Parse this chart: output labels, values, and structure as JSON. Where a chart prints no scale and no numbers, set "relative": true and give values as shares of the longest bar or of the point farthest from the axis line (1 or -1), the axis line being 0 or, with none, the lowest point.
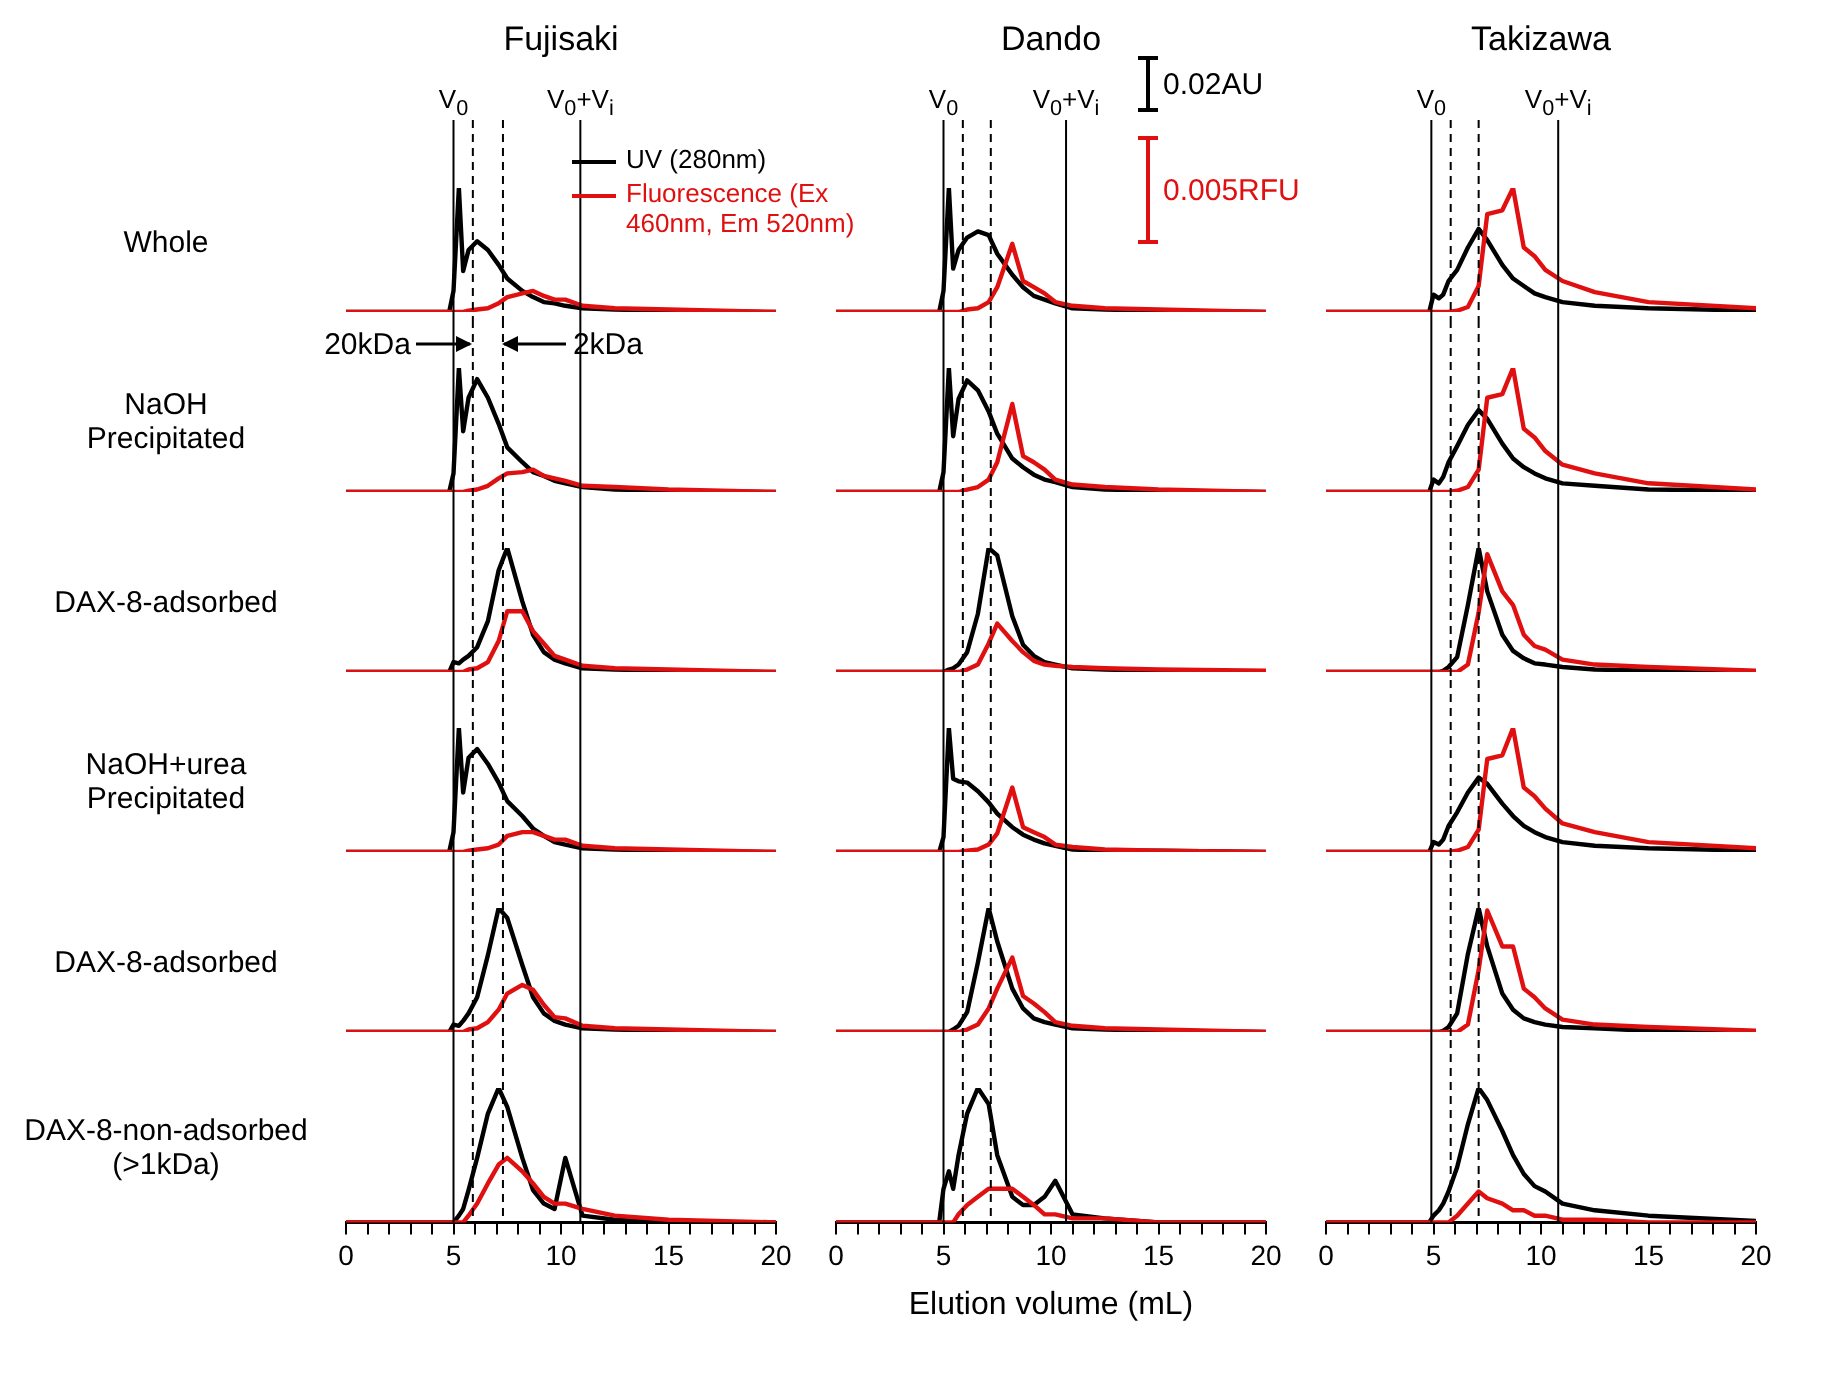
{
  "chart_data": [
    {
      "type": "line",
      "relative": true,
      "title": "Fujisaki",
      "ylabel": "Whole",
      "legend": "top right",
      "tick_labels": false,
      "xlim": [
        0,
        20
      ],
      "x": [
        0,
        4.8,
        5.0,
        5.25,
        5.45,
        5.7,
        6.1,
        6.6,
        7.1,
        7.5,
        8.2,
        8.7,
        9.2,
        9.7,
        10.2,
        11,
        12.5,
        15,
        20
      ],
      "ref_lines": [
        {
          "axis": "x",
          "value": 5.0,
          "label": "V$_{0}$"
        },
        {
          "axis": "x",
          "value": 5.9,
          "line_style": "dashed"
        },
        {
          "axis": "x",
          "value": 7.3,
          "line_style": "dashed"
        },
        {
          "axis": "x",
          "value": 10.9,
          "label": "V$_{0}$+V$_{i}$"
        }
      ],
      "series": [
        {
          "name": "UV (280nm)",
          "color": "#000000",
          "values": [
            0,
            0,
            0.17,
            1,
            0.33,
            0.5,
            0.57,
            0.5,
            0.38,
            0.27,
            0.17,
            0.12,
            0.08,
            0.07,
            0.05,
            0.03,
            0.02,
            0.01,
            0
          ]
        },
        {
          "name": "Fluorescence (Ex 460nm, Em 520nm)",
          "color": "#e01010",
          "values": [
            0,
            0,
            0,
            0,
            0,
            0.01,
            0.02,
            0.03,
            0.07,
            0.12,
            0.15,
            0.17,
            0.13,
            0.1,
            0.1,
            0.05,
            0.03,
            0.02,
            0
          ]
        }
      ]
    },
    {
      "type": "line",
      "relative": true,
      "title": "Dando",
      "annotations": [
        "0.02AU",
        "0.005RFU"
      ],
      "tick_labels": false,
      "xlim": [
        0,
        20
      ],
      "x": [
        0,
        4.8,
        5.0,
        5.25,
        5.45,
        5.7,
        6.1,
        6.6,
        7.1,
        7.5,
        8.2,
        8.7,
        9.2,
        9.7,
        10.2,
        11,
        12.5,
        15,
        20
      ],
      "ref_lines": [
        {
          "axis": "x",
          "value": 5.0,
          "label": "V$_{0}$"
        },
        {
          "axis": "x",
          "value": 5.9,
          "line_style": "dashed"
        },
        {
          "axis": "x",
          "value": 7.2,
          "line_style": "dashed"
        },
        {
          "axis": "x",
          "value": 10.7,
          "label": "V$_{0}$+V$_{i}$"
        }
      ],
      "series": [
        {
          "color": "#000000",
          "values": [
            0,
            0,
            0.17,
            1,
            0.35,
            0.5,
            0.6,
            0.65,
            0.62,
            0.47,
            0.3,
            0.2,
            0.13,
            0.1,
            0.07,
            0.03,
            0.02,
            0.01,
            0
          ]
        },
        {
          "color": "#e01010",
          "values": [
            0,
            0,
            0,
            0,
            0,
            0,
            0.02,
            0.03,
            0.08,
            0.2,
            0.55,
            0.25,
            0.2,
            0.15,
            0.08,
            0.05,
            0.03,
            0.02,
            0
          ]
        }
      ]
    },
    {
      "type": "line",
      "relative": true,
      "title": "Takizawa",
      "tick_labels": false,
      "xlim": [
        0,
        20
      ],
      "x": [
        0,
        4.8,
        5.0,
        5.25,
        5.45,
        5.7,
        6.1,
        6.6,
        7.1,
        7.5,
        8.2,
        8.7,
        9.2,
        9.7,
        10.2,
        11,
        12.5,
        15,
        20
      ],
      "ref_lines": [
        {
          "axis": "x",
          "value": 4.9,
          "label": "V$_{0}$"
        },
        {
          "axis": "x",
          "value": 5.8,
          "line_style": "dashed"
        },
        {
          "axis": "x",
          "value": 7.1,
          "line_style": "dashed"
        },
        {
          "axis": "x",
          "value": 10.8,
          "label": "V$_{0}$+V$_{i}$"
        }
      ],
      "series": [
        {
          "color": "#000000",
          "values": [
            0,
            0,
            0.14,
            0.11,
            0.14,
            0.25,
            0.34,
            0.52,
            0.67,
            0.58,
            0.38,
            0.27,
            0.21,
            0.15,
            0.12,
            0.08,
            0.05,
            0.03,
            0.01
          ]
        },
        {
          "color": "#e01010",
          "values": [
            0,
            0,
            0,
            0,
            0,
            0,
            0.01,
            0.04,
            0.21,
            0.79,
            0.82,
            1,
            0.52,
            0.45,
            0.34,
            0.25,
            0.16,
            0.08,
            0.03
          ]
        }
      ]
    },
    {
      "type": "line",
      "relative": true,
      "ylabel": "NaOH\nPrecipitated",
      "annotations": [
        {
          "text": "20kDa",
          "x": 5.9
        },
        {
          "text": "2kDa",
          "x": 7.3
        }
      ],
      "tick_labels": false,
      "xlim": [
        0,
        20
      ],
      "x": [
        0,
        4.8,
        5.0,
        5.25,
        5.45,
        5.7,
        6.1,
        6.6,
        7.1,
        7.5,
        8.2,
        8.7,
        9.2,
        9.7,
        10.2,
        11,
        12.5,
        15,
        20
      ],
      "ref_lines": [
        {
          "axis": "x",
          "value": 5.0
        },
        {
          "axis": "x",
          "value": 5.9,
          "line_style": "dashed"
        },
        {
          "axis": "x",
          "value": 7.3,
          "line_style": "dashed"
        },
        {
          "axis": "x",
          "value": 10.9
        }
      ],
      "series": [
        {
          "color": "#000000",
          "values": [
            0,
            0,
            0.15,
            1,
            0.49,
            0.76,
            0.91,
            0.76,
            0.55,
            0.36,
            0.24,
            0.16,
            0.13,
            0.09,
            0.07,
            0.04,
            0.02,
            0.01,
            0
          ]
        },
        {
          "color": "#e01010",
          "values": [
            0,
            0,
            0,
            0,
            0,
            0.01,
            0.02,
            0.05,
            0.11,
            0.15,
            0.16,
            0.18,
            0.13,
            0.11,
            0.09,
            0.05,
            0.04,
            0.02,
            0
          ]
        }
      ]
    },
    {
      "type": "line",
      "relative": true,
      "tick_labels": false,
      "xlim": [
        0,
        20
      ],
      "x": [
        0,
        4.8,
        5.0,
        5.25,
        5.45,
        5.7,
        6.1,
        6.6,
        7.1,
        7.5,
        8.2,
        8.7,
        9.2,
        9.7,
        10.2,
        11,
        12.5,
        15,
        20
      ],
      "ref_lines": [
        {
          "axis": "x",
          "value": 5.0
        },
        {
          "axis": "x",
          "value": 5.9,
          "line_style": "dashed"
        },
        {
          "axis": "x",
          "value": 7.2,
          "line_style": "dashed"
        },
        {
          "axis": "x",
          "value": 10.7
        }
      ],
      "series": [
        {
          "color": "#000000",
          "values": [
            0,
            0,
            0.16,
            1,
            0.45,
            0.75,
            0.9,
            0.82,
            0.65,
            0.47,
            0.27,
            0.2,
            0.14,
            0.1,
            0.08,
            0.04,
            0.02,
            0.01,
            0
          ]
        },
        {
          "color": "#e01010",
          "values": [
            0,
            0,
            0,
            0,
            0,
            0,
            0.02,
            0.04,
            0.1,
            0.24,
            0.71,
            0.29,
            0.24,
            0.18,
            0.1,
            0.06,
            0.04,
            0.02,
            0
          ]
        }
      ]
    },
    {
      "type": "line",
      "relative": true,
      "tick_labels": false,
      "xlim": [
        0,
        20
      ],
      "x": [
        0,
        4.8,
        5.0,
        5.25,
        5.45,
        5.7,
        6.1,
        6.6,
        7.1,
        7.5,
        8.2,
        8.7,
        9.2,
        9.7,
        10.2,
        11,
        12.5,
        15,
        20
      ],
      "ref_lines": [
        {
          "axis": "x",
          "value": 4.9
        },
        {
          "axis": "x",
          "value": 5.8,
          "line_style": "dashed"
        },
        {
          "axis": "x",
          "value": 7.1,
          "line_style": "dashed"
        },
        {
          "axis": "x",
          "value": 10.8
        }
      ],
      "series": [
        {
          "color": "#000000",
          "values": [
            0,
            0,
            0.1,
            0.07,
            0.12,
            0.24,
            0.37,
            0.54,
            0.66,
            0.59,
            0.39,
            0.27,
            0.2,
            0.15,
            0.11,
            0.07,
            0.05,
            0.02,
            0.01
          ]
        },
        {
          "color": "#e01010",
          "values": [
            0,
            0,
            0,
            0,
            0,
            0,
            0.01,
            0.04,
            0.18,
            0.76,
            0.79,
            1,
            0.51,
            0.44,
            0.33,
            0.22,
            0.15,
            0.07,
            0.02
          ]
        }
      ]
    },
    {
      "type": "line",
      "relative": true,
      "ylabel": "DAX-8-adsorbed",
      "tick_labels": false,
      "xlim": [
        0,
        20
      ],
      "x": [
        0,
        4.8,
        5.0,
        5.25,
        5.45,
        5.7,
        6.1,
        6.6,
        7.1,
        7.5,
        8.2,
        8.7,
        9.2,
        9.7,
        10.2,
        11,
        12.5,
        15,
        20
      ],
      "ref_lines": [
        {
          "axis": "x",
          "value": 5.0
        },
        {
          "axis": "x",
          "value": 5.9,
          "line_style": "dashed"
        },
        {
          "axis": "x",
          "value": 7.3,
          "line_style": "dashed"
        },
        {
          "axis": "x",
          "value": 10.9
        }
      ],
      "series": [
        {
          "color": "#000000",
          "values": [
            0,
            0,
            0.08,
            0.07,
            0.1,
            0.13,
            0.2,
            0.41,
            0.82,
            1,
            0.57,
            0.3,
            0.16,
            0.1,
            0.07,
            0.03,
            0.02,
            0.01,
            0
          ]
        },
        {
          "color": "#e01010",
          "values": [
            0,
            0,
            0,
            0,
            0,
            0.02,
            0.03,
            0.08,
            0.25,
            0.49,
            0.49,
            0.33,
            0.23,
            0.13,
            0.1,
            0.05,
            0.03,
            0.02,
            0
          ]
        }
      ]
    },
    {
      "type": "line",
      "relative": true,
      "tick_labels": false,
      "xlim": [
        0,
        20
      ],
      "x": [
        0,
        4.8,
        5.0,
        5.25,
        5.45,
        5.7,
        6.1,
        6.6,
        7.1,
        7.5,
        8.2,
        8.7,
        9.2,
        9.7,
        10.2,
        11,
        12.5,
        15,
        20
      ],
      "ref_lines": [
        {
          "axis": "x",
          "value": 5.0
        },
        {
          "axis": "x",
          "value": 5.9,
          "line_style": "dashed"
        },
        {
          "axis": "x",
          "value": 7.2,
          "line_style": "dashed"
        },
        {
          "axis": "x",
          "value": 10.7
        }
      ],
      "series": [
        {
          "color": "#000000",
          "values": [
            0,
            0,
            0,
            0.02,
            0.03,
            0.06,
            0.16,
            0.47,
            1,
            0.94,
            0.45,
            0.22,
            0.13,
            0.08,
            0.06,
            0.03,
            0.02,
            0.01,
            0
          ]
        },
        {
          "color": "#e01010",
          "values": [
            0,
            0,
            0,
            0,
            0,
            0,
            0.02,
            0.06,
            0.23,
            0.39,
            0.25,
            0.16,
            0.09,
            0.06,
            0.05,
            0.04,
            0.03,
            0.02,
            0.01
          ]
        }
      ]
    },
    {
      "type": "line",
      "relative": true,
      "tick_labels": false,
      "xlim": [
        0,
        20
      ],
      "x": [
        0,
        4.8,
        5.0,
        5.25,
        5.45,
        5.7,
        6.1,
        6.6,
        7.1,
        7.5,
        8.2,
        8.7,
        9.2,
        9.7,
        10.2,
        11,
        12.5,
        15,
        20
      ],
      "ref_lines": [
        {
          "axis": "x",
          "value": 4.9
        },
        {
          "axis": "x",
          "value": 5.8,
          "line_style": "dashed"
        },
        {
          "axis": "x",
          "value": 7.1,
          "line_style": "dashed"
        },
        {
          "axis": "x",
          "value": 10.8
        }
      ],
      "series": [
        {
          "color": "#000000",
          "values": [
            0,
            0,
            0,
            0,
            0.01,
            0.04,
            0.12,
            0.54,
            1,
            0.65,
            0.3,
            0.17,
            0.11,
            0.07,
            0.06,
            0.04,
            0.02,
            0.01,
            0
          ]
        },
        {
          "color": "#e01010",
          "values": [
            0,
            0,
            0,
            0,
            0,
            0,
            0,
            0.06,
            0.48,
            0.95,
            0.65,
            0.54,
            0.3,
            0.21,
            0.18,
            0.1,
            0.06,
            0.04,
            0.01
          ]
        }
      ]
    },
    {
      "type": "line",
      "relative": true,
      "ylabel": "NaOH+urea\nPrecipitated",
      "tick_labels": false,
      "xlim": [
        0,
        20
      ],
      "x": [
        0,
        4.8,
        5.0,
        5.25,
        5.45,
        5.7,
        6.1,
        6.6,
        7.1,
        7.5,
        8.2,
        8.7,
        9.2,
        9.7,
        10.2,
        11,
        12.5,
        15,
        20
      ],
      "ref_lines": [
        {
          "axis": "x",
          "value": 5.0
        },
        {
          "axis": "x",
          "value": 5.9,
          "line_style": "dashed"
        },
        {
          "axis": "x",
          "value": 7.3,
          "line_style": "dashed"
        },
        {
          "axis": "x",
          "value": 10.9
        }
      ],
      "series": [
        {
          "color": "#000000",
          "values": [
            0,
            0,
            0.16,
            1,
            0.48,
            0.76,
            0.83,
            0.71,
            0.56,
            0.41,
            0.29,
            0.19,
            0.13,
            0.08,
            0.06,
            0.03,
            0.02,
            0.01,
            0
          ]
        },
        {
          "color": "#e01010",
          "values": [
            0,
            0,
            0,
            0,
            0,
            0.01,
            0.02,
            0.03,
            0.06,
            0.13,
            0.16,
            0.16,
            0.13,
            0.1,
            0.1,
            0.05,
            0.03,
            0.02,
            0
          ]
        }
      ]
    },
    {
      "type": "line",
      "relative": true,
      "tick_labels": false,
      "xlim": [
        0,
        20
      ],
      "x": [
        0,
        4.8,
        5.0,
        5.25,
        5.45,
        5.7,
        6.1,
        6.6,
        7.1,
        7.5,
        8.2,
        8.7,
        9.2,
        9.7,
        10.2,
        11,
        12.5,
        15,
        20
      ],
      "ref_lines": [
        {
          "axis": "x",
          "value": 5.0
        },
        {
          "axis": "x",
          "value": 5.9,
          "line_style": "dashed"
        },
        {
          "axis": "x",
          "value": 7.2,
          "line_style": "dashed"
        },
        {
          "axis": "x",
          "value": 10.7
        }
      ],
      "series": [
        {
          "color": "#000000",
          "values": [
            0,
            0,
            0.12,
            1,
            0.59,
            0.57,
            0.56,
            0.49,
            0.4,
            0.31,
            0.2,
            0.14,
            0.1,
            0.07,
            0.05,
            0.02,
            0.01,
            0.01,
            0
          ]
        },
        {
          "color": "#e01010",
          "values": [
            0,
            0,
            0,
            0,
            0,
            0,
            0.01,
            0.02,
            0.06,
            0.15,
            0.52,
            0.2,
            0.16,
            0.12,
            0.06,
            0.04,
            0.02,
            0.01,
            0
          ]
        }
      ]
    },
    {
      "type": "line",
      "relative": true,
      "tick_labels": false,
      "xlim": [
        0,
        20
      ],
      "x": [
        0,
        4.8,
        5.0,
        5.25,
        5.45,
        5.7,
        6.1,
        6.6,
        7.1,
        7.5,
        8.2,
        8.7,
        9.2,
        9.7,
        10.2,
        11,
        12.5,
        15,
        20
      ],
      "ref_lines": [
        {
          "axis": "x",
          "value": 4.9
        },
        {
          "axis": "x",
          "value": 5.8,
          "line_style": "dashed"
        },
        {
          "axis": "x",
          "value": 7.1,
          "line_style": "dashed"
        },
        {
          "axis": "x",
          "value": 10.8
        }
      ],
      "series": [
        {
          "color": "#000000",
          "values": [
            0,
            0,
            0.08,
            0.06,
            0.1,
            0.21,
            0.32,
            0.48,
            0.6,
            0.55,
            0.39,
            0.29,
            0.21,
            0.16,
            0.12,
            0.08,
            0.05,
            0.03,
            0.01
          ]
        },
        {
          "color": "#e01010",
          "values": [
            0,
            0,
            0,
            0,
            0,
            0,
            0.01,
            0.04,
            0.18,
            0.75,
            0.78,
            1,
            0.52,
            0.45,
            0.35,
            0.23,
            0.16,
            0.08,
            0.03
          ]
        }
      ]
    },
    {
      "type": "line",
      "relative": true,
      "ylabel": "DAX-8-adsorbed",
      "tick_labels": false,
      "xlim": [
        0,
        20
      ],
      "x": [
        0,
        4.8,
        5.0,
        5.25,
        5.45,
        5.7,
        6.1,
        6.6,
        7.1,
        7.5,
        8.2,
        8.7,
        9.2,
        9.7,
        10.2,
        11,
        12.5,
        15,
        20
      ],
      "ref_lines": [
        {
          "axis": "x",
          "value": 5.0
        },
        {
          "axis": "x",
          "value": 5.9,
          "line_style": "dashed"
        },
        {
          "axis": "x",
          "value": 7.3,
          "line_style": "dashed"
        },
        {
          "axis": "x",
          "value": 10.9
        }
      ],
      "series": [
        {
          "color": "#000000",
          "values": [
            0,
            0,
            0.06,
            0.05,
            0.09,
            0.15,
            0.28,
            0.62,
            1,
            0.92,
            0.54,
            0.28,
            0.15,
            0.09,
            0.06,
            0.03,
            0.02,
            0.01,
            0
          ]
        },
        {
          "color": "#e01010",
          "values": [
            0,
            0,
            0,
            0,
            0,
            0.02,
            0.03,
            0.08,
            0.18,
            0.31,
            0.38,
            0.34,
            0.22,
            0.12,
            0.11,
            0.05,
            0.03,
            0.02,
            0
          ]
        }
      ]
    },
    {
      "type": "line",
      "relative": true,
      "tick_labels": false,
      "xlim": [
        0,
        20
      ],
      "x": [
        0,
        4.8,
        5.0,
        5.25,
        5.45,
        5.7,
        6.1,
        6.6,
        7.1,
        7.5,
        8.2,
        8.7,
        9.2,
        9.7,
        10.2,
        11,
        12.5,
        15,
        20
      ],
      "ref_lines": [
        {
          "axis": "x",
          "value": 5.0
        },
        {
          "axis": "x",
          "value": 5.9,
          "line_style": "dashed"
        },
        {
          "axis": "x",
          "value": 7.2,
          "line_style": "dashed"
        },
        {
          "axis": "x",
          "value": 10.7
        }
      ],
      "series": [
        {
          "color": "#000000",
          "values": [
            0,
            0,
            0,
            0,
            0.02,
            0.05,
            0.16,
            0.56,
            1,
            0.73,
            0.35,
            0.19,
            0.11,
            0.08,
            0.06,
            0.03,
            0.02,
            0.01,
            0
          ]
        },
        {
          "color": "#e01010",
          "values": [
            0,
            0,
            0,
            0,
            0,
            0,
            0.02,
            0.06,
            0.19,
            0.35,
            0.6,
            0.29,
            0.23,
            0.16,
            0.08,
            0.05,
            0.03,
            0.02,
            0
          ]
        }
      ]
    },
    {
      "type": "line",
      "relative": true,
      "tick_labels": false,
      "xlim": [
        0,
        20
      ],
      "x": [
        0,
        4.8,
        5.0,
        5.25,
        5.45,
        5.7,
        6.1,
        6.6,
        7.1,
        7.5,
        8.2,
        8.7,
        9.2,
        9.7,
        10.2,
        11,
        12.5,
        15,
        20
      ],
      "ref_lines": [
        {
          "axis": "x",
          "value": 4.9
        },
        {
          "axis": "x",
          "value": 5.8,
          "line_style": "dashed"
        },
        {
          "axis": "x",
          "value": 7.1,
          "line_style": "dashed"
        },
        {
          "axis": "x",
          "value": 10.8
        }
      ],
      "series": [
        {
          "color": "#000000",
          "values": [
            0,
            0,
            0,
            0,
            0.01,
            0.04,
            0.15,
            0.63,
            1,
            0.69,
            0.31,
            0.18,
            0.11,
            0.08,
            0.06,
            0.04,
            0.03,
            0.01,
            0
          ]
        },
        {
          "color": "#e01010",
          "values": [
            0,
            0,
            0,
            0,
            0,
            0,
            0,
            0.06,
            0.5,
            0.98,
            0.69,
            0.69,
            0.35,
            0.28,
            0.19,
            0.1,
            0.06,
            0.04,
            0.01
          ]
        }
      ]
    },
    {
      "type": "line",
      "relative": true,
      "ylabel": "DAX-8-non-adsorbed\n(>1kDa)",
      "tick_labels": "x",
      "xlim": [
        0,
        20
      ],
      "xticks": [
        0,
        {
          "value": 1,
          "label": null
        },
        {
          "value": 2,
          "label": null
        },
        {
          "value": 3,
          "label": null
        },
        {
          "value": 4,
          "label": null
        },
        5,
        {
          "value": 6,
          "label": null
        },
        {
          "value": 7,
          "label": null
        },
        {
          "value": 8,
          "label": null
        },
        {
          "value": 9,
          "label": null
        },
        10,
        {
          "value": 11,
          "label": null
        },
        {
          "value": 12,
          "label": null
        },
        {
          "value": 13,
          "label": null
        },
        {
          "value": 14,
          "label": null
        },
        15,
        {
          "value": 16,
          "label": null
        },
        {
          "value": 17,
          "label": null
        },
        {
          "value": 18,
          "label": null
        },
        {
          "value": 19,
          "label": null
        },
        20
      ],
      "x": [
        0,
        4.8,
        5.0,
        5.25,
        5.45,
        5.7,
        6.1,
        6.6,
        7.1,
        7.5,
        8.2,
        8.7,
        9.2,
        9.7,
        10.2,
        11,
        12.5,
        15,
        20
      ],
      "ref_lines": [
        {
          "axis": "x",
          "value": 5.0
        },
        {
          "axis": "x",
          "value": 5.9,
          "line_style": "dashed"
        },
        {
          "axis": "x",
          "value": 7.3,
          "line_style": "dashed"
        },
        {
          "axis": "x",
          "value": 10.9
        }
      ],
      "series": [
        {
          "color": "#000000",
          "values": [
            0,
            0,
            0,
            0.05,
            0.1,
            0.24,
            0.48,
            0.81,
            1,
            0.86,
            0.48,
            0.24,
            0.14,
            0.1,
            0.48,
            0.05,
            0.02,
            0,
            0
          ]
        },
        {
          "color": "#e01010",
          "values": [
            0,
            0,
            0,
            0,
            0,
            0.05,
            0.14,
            0.29,
            0.43,
            0.48,
            0.38,
            0.29,
            0.19,
            0.14,
            0.14,
            0.1,
            0.05,
            0.02,
            0
          ]
        }
      ]
    },
    {
      "type": "line",
      "relative": true,
      "xlabel": "Elution volume (mL)",
      "tick_labels": "x",
      "xlim": [
        0,
        20
      ],
      "xticks": [
        0,
        {
          "value": 1,
          "label": null
        },
        {
          "value": 2,
          "label": null
        },
        {
          "value": 3,
          "label": null
        },
        {
          "value": 4,
          "label": null
        },
        5,
        {
          "value": 6,
          "label": null
        },
        {
          "value": 7,
          "label": null
        },
        {
          "value": 8,
          "label": null
        },
        {
          "value": 9,
          "label": null
        },
        10,
        {
          "value": 11,
          "label": null
        },
        {
          "value": 12,
          "label": null
        },
        {
          "value": 13,
          "label": null
        },
        {
          "value": 14,
          "label": null
        },
        15,
        {
          "value": 16,
          "label": null
        },
        {
          "value": 17,
          "label": null
        },
        {
          "value": 18,
          "label": null
        },
        {
          "value": 19,
          "label": null
        },
        20
      ],
      "x": [
        0,
        4.8,
        5.0,
        5.25,
        5.45,
        5.7,
        6.1,
        6.6,
        7.1,
        7.5,
        8.2,
        8.7,
        9.2,
        9.7,
        10.2,
        11,
        12.5,
        15,
        20
      ],
      "ref_lines": [
        {
          "axis": "x",
          "value": 5.0
        },
        {
          "axis": "x",
          "value": 5.9,
          "line_style": "dashed"
        },
        {
          "axis": "x",
          "value": 7.2,
          "line_style": "dashed"
        },
        {
          "axis": "x",
          "value": 10.7
        }
      ],
      "series": [
        {
          "color": "#000000",
          "values": [
            0,
            0,
            0.25,
            0.38,
            0.25,
            0.5,
            0.81,
            1,
            0.88,
            0.5,
            0.19,
            0.13,
            0.13,
            0.19,
            0.31,
            0.06,
            0.03,
            0,
            0
          ]
        },
        {
          "color": "#e01010",
          "values": [
            0,
            0,
            0,
            0,
            0,
            0.06,
            0.13,
            0.19,
            0.25,
            0.25,
            0.25,
            0.19,
            0.13,
            0.06,
            0.06,
            0.03,
            0.03,
            0,
            0
          ]
        }
      ]
    },
    {
      "type": "line",
      "relative": true,
      "tick_labels": "x",
      "xlim": [
        0,
        20
      ],
      "xticks": [
        0,
        {
          "value": 1,
          "label": null
        },
        {
          "value": 2,
          "label": null
        },
        {
          "value": 3,
          "label": null
        },
        {
          "value": 4,
          "label": null
        },
        5,
        {
          "value": 6,
          "label": null
        },
        {
          "value": 7,
          "label": null
        },
        {
          "value": 8,
          "label": null
        },
        {
          "value": 9,
          "label": null
        },
        10,
        {
          "value": 11,
          "label": null
        },
        {
          "value": 12,
          "label": null
        },
        {
          "value": 13,
          "label": null
        },
        {
          "value": 14,
          "label": null
        },
        15,
        {
          "value": 16,
          "label": null
        },
        {
          "value": 17,
          "label": null
        },
        {
          "value": 18,
          "label": null
        },
        {
          "value": 19,
          "label": null
        },
        20
      ],
      "x": [
        0,
        4.8,
        5.0,
        5.25,
        5.45,
        5.7,
        6.1,
        6.6,
        7.1,
        7.5,
        8.2,
        8.7,
        9.2,
        9.7,
        10.2,
        11,
        12.5,
        15,
        20
      ],
      "ref_lines": [
        {
          "axis": "x",
          "value": 4.9
        },
        {
          "axis": "x",
          "value": 5.8,
          "line_style": "dashed"
        },
        {
          "axis": "x",
          "value": 7.1,
          "line_style": "dashed"
        },
        {
          "axis": "x",
          "value": 10.8
        }
      ],
      "series": [
        {
          "color": "#000000",
          "values": [
            0,
            0,
            0.05,
            0.09,
            0.14,
            0.23,
            0.41,
            0.73,
            1,
            0.91,
            0.68,
            0.5,
            0.36,
            0.27,
            0.23,
            0.14,
            0.09,
            0.05,
            0.01
          ]
        },
        {
          "color": "#e01010",
          "values": [
            0,
            0,
            0,
            0,
            0,
            0,
            0.05,
            0.14,
            0.23,
            0.18,
            0.14,
            0.09,
            0.09,
            0.05,
            0.05,
            0.02,
            0.02,
            0,
            0
          ]
        }
      ]
    }
  ]
}
